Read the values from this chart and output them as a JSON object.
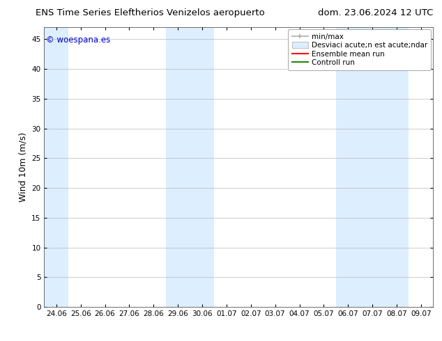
{
  "title_left": "ENS Time Series Eleftherios Venizelos aeropuerto",
  "title_right": "dom. 23.06.2024 12 UTC",
  "ylabel": "Wind 10m (m/s)",
  "watermark": "© woespana.es",
  "background_color": "#ffffff",
  "plot_bg_color": "#ffffff",
  "shaded_band_color": "#ddeeff",
  "ylim": [
    0,
    47
  ],
  "yticks": [
    0,
    5,
    10,
    15,
    20,
    25,
    30,
    35,
    40,
    45
  ],
  "xtick_labels": [
    "24.06",
    "25.06",
    "26.06",
    "27.06",
    "28.06",
    "29.06",
    "30.06",
    "01.07",
    "02.07",
    "03.07",
    "04.07",
    "05.07",
    "06.07",
    "07.07",
    "08.07",
    "09.07"
  ],
  "shaded_columns": [
    0,
    5,
    6,
    12,
    13,
    14
  ],
  "title_fontsize": 9.5,
  "tick_fontsize": 7.5,
  "ylabel_fontsize": 9,
  "watermark_color": "#0000cc",
  "watermark_fontsize": 8.5,
  "legend_fontsize": 7.5,
  "minmax_color": "#aaaaaa",
  "std_color": "#ddeeff",
  "ensemble_color": "#ff0000",
  "control_color": "#228800"
}
